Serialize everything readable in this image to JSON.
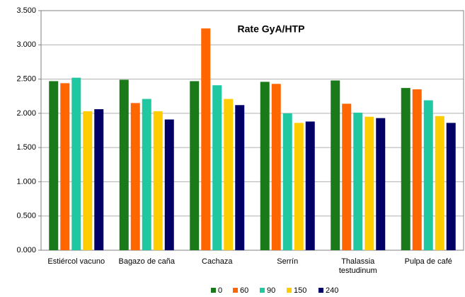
{
  "chart_data": {
    "type": "bar",
    "title": "Rate GyA/HTP",
    "categories": [
      "Estiércol vacuno",
      "Bagazo de caña",
      "Cachaza",
      "Serrín",
      "Thalassia testudinum",
      "Pulpa de café"
    ],
    "series": [
      {
        "name": "0",
        "color": "#1a7a1a",
        "values": [
          2.47,
          2.49,
          2.47,
          2.46,
          2.48,
          2.37
        ]
      },
      {
        "name": "60",
        "color": "#ff6600",
        "values": [
          2.44,
          2.15,
          3.24,
          2.43,
          2.14,
          2.35
        ]
      },
      {
        "name": "90",
        "color": "#1fc8a0",
        "values": [
          2.52,
          2.21,
          2.41,
          2.0,
          2.01,
          2.19
        ]
      },
      {
        "name": "150",
        "color": "#ffcc00",
        "values": [
          2.03,
          2.03,
          2.21,
          1.86,
          1.95,
          1.96
        ]
      },
      {
        "name": "240",
        "color": "#000066",
        "values": [
          2.06,
          1.91,
          2.12,
          1.88,
          1.93,
          1.86
        ]
      }
    ],
    "ylim": [
      0,
      3.5
    ],
    "yticks": [
      {
        "value": 0,
        "label": "0.000"
      },
      {
        "value": 0.5,
        "label": "0.500"
      },
      {
        "value": 1,
        "label": "1.000"
      },
      {
        "value": 1.5,
        "label": "1.500"
      },
      {
        "value": 2,
        "label": "2.000"
      },
      {
        "value": 2.5,
        "label": "2.500"
      },
      {
        "value": 3,
        "label": "3.000"
      },
      {
        "value": 3.5,
        "label": "3.500"
      }
    ],
    "grid": true,
    "legend": "bottom"
  }
}
